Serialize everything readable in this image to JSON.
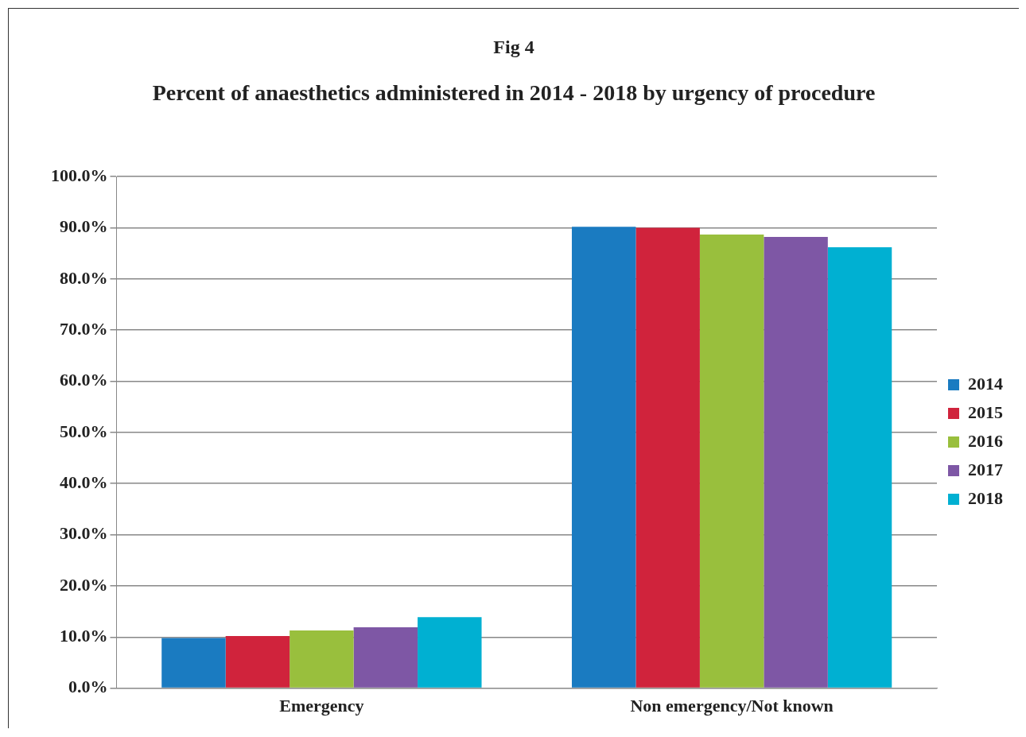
{
  "chart_data": {
    "type": "bar",
    "title": "Fig 4",
    "subtitle": "Percent of anaesthetics administered in 2014 - 2018 by urgency of procedure",
    "categories": [
      "Emergency",
      "Non emergency/Not known"
    ],
    "series": [
      {
        "name": "2014",
        "color": "#1a7bc1",
        "values": [
          9.8,
          90.2
        ]
      },
      {
        "name": "2015",
        "color": "#d0233c",
        "values": [
          10.2,
          90.0
        ]
      },
      {
        "name": "2016",
        "color": "#99bf3d",
        "values": [
          11.3,
          88.7
        ]
      },
      {
        "name": "2017",
        "color": "#7e57a5",
        "values": [
          11.9,
          88.2
        ]
      },
      {
        "name": "2018",
        "color": "#00b0d2",
        "values": [
          13.9,
          86.2
        ]
      }
    ],
    "ylim": [
      0,
      100
    ],
    "yticks": [
      {
        "value": 0,
        "label": "0.0%"
      },
      {
        "value": 10,
        "label": "10.0%"
      },
      {
        "value": 20,
        "label": "20.0%"
      },
      {
        "value": 30,
        "label": "30.0%"
      },
      {
        "value": 40,
        "label": "40.0%"
      },
      {
        "value": 50,
        "label": "50.0%"
      },
      {
        "value": 60,
        "label": "60.0%"
      },
      {
        "value": 70,
        "label": "70.0%"
      },
      {
        "value": 80,
        "label": "80.0%"
      },
      {
        "value": 90,
        "label": "90.0%"
      },
      {
        "value": 100,
        "label": "100.0%"
      }
    ],
    "grid": "y",
    "legend": "right"
  }
}
